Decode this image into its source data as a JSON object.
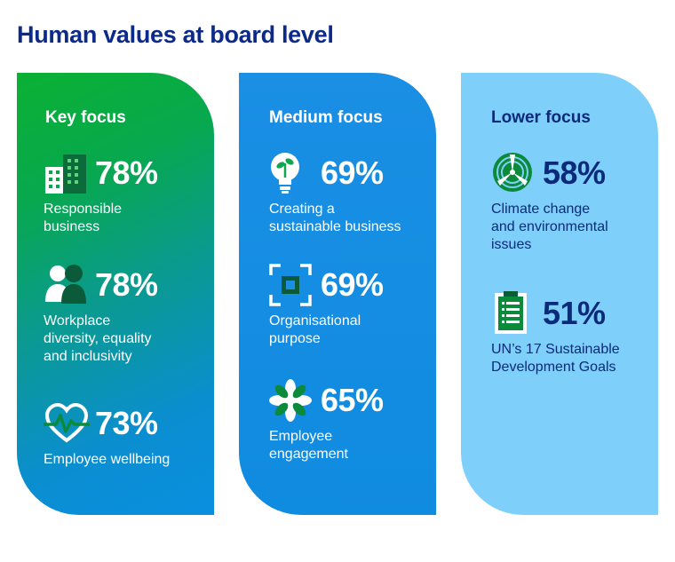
{
  "page": {
    "title": "Human values at board level"
  },
  "colors": {
    "title": "#0b2a8a",
    "key": "#0ab133",
    "medium": "#1a8fe4",
    "lower": "#7fcffb",
    "dark_text": "#0b2a7a"
  },
  "columns": {
    "key": {
      "title": "Key focus",
      "items": [
        {
          "icon": "buildings-icon",
          "pct": "78%",
          "label": "Responsible\nbusiness"
        },
        {
          "icon": "people-icon",
          "pct": "78%",
          "label": "Workplace\ndiversity, equality\nand inclusivity"
        },
        {
          "icon": "heartbeat-icon",
          "pct": "73%",
          "label": "Employee wellbeing"
        }
      ]
    },
    "medium": {
      "title": "Medium focus",
      "items": [
        {
          "icon": "lightbulb-plant-icon",
          "pct": "69%",
          "label": "Creating a\nsustainable business"
        },
        {
          "icon": "target-square-icon",
          "pct": "69%",
          "label": "Organisational\npurpose"
        },
        {
          "icon": "flower-icon",
          "pct": "65%",
          "label": "Employee\nengagement"
        }
      ]
    },
    "lower": {
      "title": "Lower focus",
      "items": [
        {
          "icon": "wind-turbine-icon",
          "pct": "58%",
          "label": "Climate change\nand environmental\nissues"
        },
        {
          "icon": "clipboard-icon",
          "pct": "51%",
          "label": "UN’s 17 Sustainable\nDevelopment Goals"
        }
      ]
    }
  }
}
